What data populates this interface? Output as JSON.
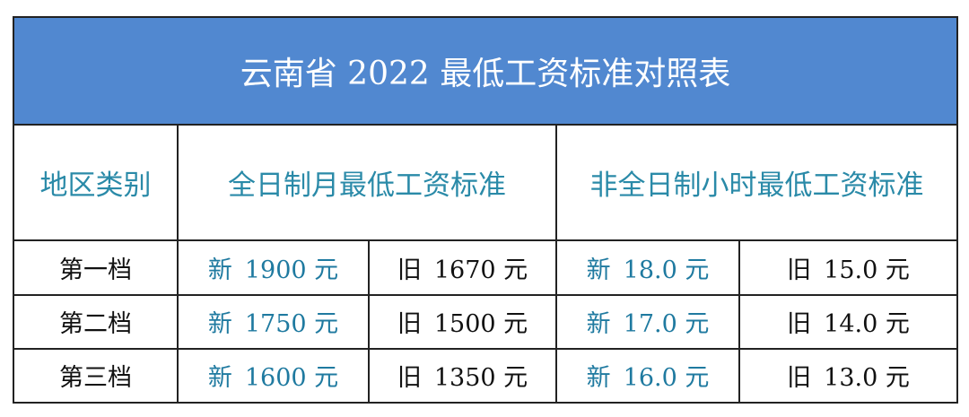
{
  "title": "云南省 2022 最低工资标准对照表",
  "headers": {
    "region": "地区类别",
    "monthly": "全日制月最低工资标准",
    "hourly": "非全日制小时最低工资标准"
  },
  "labels": {
    "new": "新",
    "old": "旧"
  },
  "rows": [
    {
      "category": "第一档",
      "monthly_new": "1900 元",
      "monthly_old": "1670 元",
      "hourly_new": "18.0 元",
      "hourly_old": "15.0 元"
    },
    {
      "category": "第二档",
      "monthly_new": "1750 元",
      "monthly_old": "1500 元",
      "hourly_new": "17.0 元",
      "hourly_old": "14.0 元"
    },
    {
      "category": "第三档",
      "monthly_new": "1600 元",
      "monthly_old": "1350 元",
      "hourly_new": "16.0 元",
      "hourly_old": "13.0 元"
    }
  ],
  "colors": {
    "title_bg": "#5188d0",
    "header_text": "#2a8aa8",
    "new_value_text": "#1f7aa0"
  }
}
